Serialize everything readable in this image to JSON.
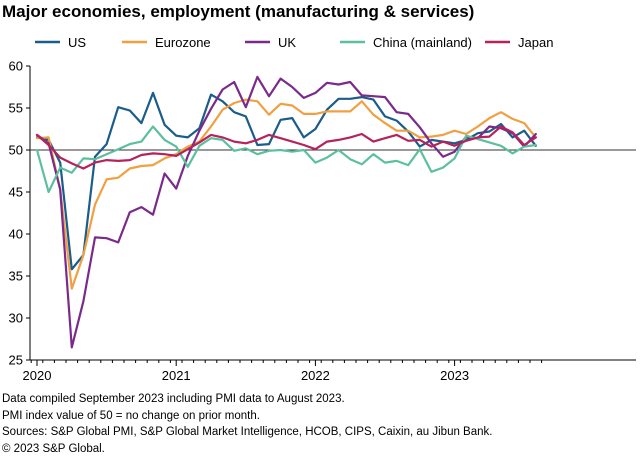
{
  "title": "Major economies, employment (manufacturing & services)",
  "notes": [
    "Data compiled September 2023 including PMI data to August 2023.",
    "PMI index value of 50 = no change on prior month.",
    "Sources: S&P Global PMI, S&P Global Market Intelligence, HCOB, CIPS, Caixin, au Jibun Bank.",
    "© 2023 S&P Global."
  ],
  "chart_data": {
    "type": "line",
    "title": "Major economies, employment (manufacturing & services)",
    "xlabel": "",
    "ylabel": "",
    "ylim": [
      25,
      60
    ],
    "yticks": [
      25,
      30,
      35,
      40,
      45,
      50,
      55,
      60
    ],
    "xticks": [
      "2020",
      "2021",
      "2022",
      "2023"
    ],
    "x_start": "2020-01",
    "reference_line": 50,
    "legend_position": "top",
    "grid": false,
    "series": [
      {
        "name": "US",
        "color": "#1a5c8a",
        "values": [
          51.5,
          51.2,
          48.5,
          35.8,
          37.5,
          49.2,
          50.7,
          55.1,
          54.7,
          53.2,
          56.8,
          53.0,
          51.7,
          51.5,
          52.6,
          56.6,
          55.8,
          54.5,
          54.0,
          50.6,
          50.7,
          53.6,
          53.8,
          51.5,
          52.5,
          54.8,
          56.1,
          56.1,
          56.3,
          56.0,
          54.0,
          53.5,
          52.2,
          50.4,
          51.2,
          51.0,
          50.8,
          51.2,
          52.0,
          52.2,
          53.1,
          51.5,
          52.3,
          50.5
        ]
      },
      {
        "name": "Eurozone",
        "color": "#f0a040",
        "values": [
          51.4,
          51.5,
          45.3,
          33.5,
          37.5,
          43.5,
          46.5,
          46.7,
          47.8,
          48.1,
          48.2,
          49.0,
          49.5,
          50.4,
          51.0,
          52.8,
          54.8,
          55.6,
          56.0,
          55.8,
          54.2,
          55.5,
          55.3,
          54.3,
          54.3,
          54.6,
          54.6,
          54.6,
          55.8,
          54.2,
          53.2,
          52.3,
          52.3,
          51.5,
          51.6,
          51.8,
          52.3,
          51.9,
          52.8,
          53.8,
          54.5,
          53.7,
          53.2,
          51.5
        ]
      },
      {
        "name": "UK",
        "color": "#7a2a8a",
        "values": [
          51.8,
          50.8,
          45.3,
          26.5,
          32.0,
          39.6,
          39.5,
          39.0,
          42.6,
          43.2,
          42.3,
          47.2,
          45.4,
          49.3,
          52.3,
          54.9,
          57.2,
          58.1,
          55.1,
          58.7,
          56.4,
          58.5,
          57.5,
          56.2,
          56.8,
          58.0,
          57.8,
          58.1,
          56.5,
          56.4,
          56.3,
          54.5,
          54.3,
          52.7,
          50.8,
          49.2,
          49.8,
          51.6,
          51.4,
          52.8,
          52.6,
          52.0,
          50.4,
          51.9
        ]
      },
      {
        "name": "China (mainland)",
        "color": "#5cbf9e",
        "values": [
          50.0,
          45.0,
          47.9,
          47.3,
          49.0,
          48.9,
          49.5,
          50.1,
          50.7,
          51.0,
          52.8,
          51.2,
          50.4,
          48.0,
          50.5,
          51.4,
          51.2,
          49.9,
          50.2,
          49.5,
          49.9,
          50.0,
          49.8,
          50.0,
          48.5,
          49.1,
          50.0,
          48.9,
          48.3,
          49.5,
          48.5,
          48.7,
          48.2,
          50.1,
          47.4,
          47.9,
          49.0,
          51.7,
          51.3,
          50.9,
          50.5,
          49.6,
          50.4,
          50.6
        ]
      },
      {
        "name": "Japan",
        "color": "#b5235a",
        "values": [
          51.8,
          50.6,
          49.1,
          48.4,
          47.8,
          48.5,
          48.8,
          48.7,
          48.8,
          49.4,
          49.6,
          49.5,
          49.3,
          50.1,
          50.9,
          51.8,
          51.5,
          51.0,
          50.8,
          51.2,
          51.8,
          51.4,
          51.0,
          50.6,
          50.1,
          51.0,
          51.2,
          51.5,
          51.9,
          51.0,
          51.4,
          51.8,
          51.1,
          51.2,
          50.4,
          51.0,
          50.5,
          51.1,
          51.5,
          51.6,
          52.8,
          52.1,
          50.6,
          51.5
        ]
      }
    ]
  }
}
